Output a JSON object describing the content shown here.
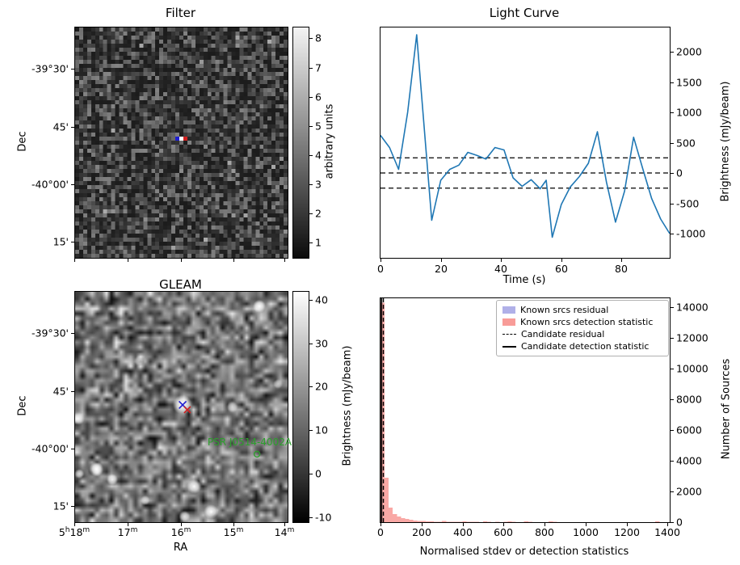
{
  "chart_data": [
    {
      "id": "filter",
      "type": "heatmap",
      "title": "Filter",
      "xlabel": "",
      "ylabel": "Dec",
      "ytick_labels": [
        "-39°30'",
        "45'",
        "-40°00'",
        "15'"
      ],
      "colorbar": {
        "label": "arbitrary units",
        "ticks": [
          8,
          7,
          6,
          5,
          4,
          3,
          2,
          1
        ],
        "min": 0.5,
        "max": 8.4,
        "top_color": "#f4f4f4",
        "bottom_color": "#0b0b0b"
      },
      "image": {
        "style": "pixel-noise",
        "grid": [
          53,
          57
        ]
      },
      "markers": [
        {
          "shape": "pixel",
          "color": "#1f1fd0",
          "cell": [
            25,
            27
          ]
        },
        {
          "shape": "pixel",
          "color": "#ffffff",
          "cell": [
            26,
            27
          ]
        },
        {
          "shape": "pixel",
          "color": "#d02020",
          "cell": [
            27,
            27
          ]
        }
      ]
    },
    {
      "id": "light-curve",
      "type": "line",
      "title": "Light Curve",
      "xlabel": "Time (s)",
      "ylabel": "Brightness (mJy/beam)",
      "line_color": "#1f77b4",
      "xlim": [
        0,
        96
      ],
      "ylim": [
        -1400,
        2400
      ],
      "xticks": [
        0,
        20,
        40,
        60,
        80
      ],
      "yticks": [
        2000,
        1500,
        1000,
        500,
        0,
        -500,
        -1000
      ],
      "x": [
        0,
        3,
        6,
        9,
        12,
        15,
        17,
        20,
        23,
        26,
        29,
        32,
        35,
        38,
        41,
        44,
        47,
        50,
        53,
        55,
        57,
        60,
        63,
        66,
        69,
        72,
        75,
        78,
        81,
        84,
        87,
        90,
        93,
        96
      ],
      "y": [
        620,
        420,
        60,
        1000,
        2280,
        450,
        -780,
        -120,
        60,
        130,
        340,
        290,
        230,
        420,
        380,
        -80,
        -220,
        -110,
        -260,
        -120,
        -1060,
        -520,
        -230,
        -60,
        160,
        680,
        -150,
        -810,
        -300,
        590,
        80,
        -420,
        -760,
        -1000
      ],
      "dashed_hlines": [
        250,
        0,
        -250
      ],
      "hline_color": "#000000"
    },
    {
      "id": "gleam",
      "type": "heatmap",
      "title": "GLEAM",
      "xlabel": "RA",
      "ylabel": "Dec",
      "xtick_labels": [
        "5^h^18^m",
        "17^m",
        "16^m",
        "15^m",
        "14^m"
      ],
      "ytick_labels": [
        "-39°30'",
        "45'",
        "-40°00'",
        "15'"
      ],
      "colorbar": {
        "label": "Brightness (mJy/beam)",
        "ticks": [
          40,
          30,
          20,
          10,
          0,
          -10
        ],
        "min": -11,
        "max": 42,
        "top_color": "#ffffff",
        "bottom_color": "#000000"
      },
      "image": {
        "style": "smoothed-noise",
        "grid": [
          44,
          48
        ],
        "blobs": [
          [
            0.505,
            0.49,
            12,
            1
          ],
          [
            0.867,
            0.063,
            8,
            1
          ],
          [
            0.015,
            0.55,
            8,
            0.85
          ],
          [
            0.1,
            0.77,
            9,
            1
          ],
          [
            0.175,
            0.815,
            7,
            0.9
          ],
          [
            0.02,
            0.79,
            6,
            0.8
          ],
          [
            0.56,
            0.845,
            9,
            1
          ],
          [
            0.64,
            0.955,
            9,
            1
          ],
          [
            0.515,
            0.975,
            7,
            0.85
          ],
          [
            0.33,
            0.905,
            6,
            0.75
          ],
          [
            0.74,
            0.5,
            7,
            0.65
          ],
          [
            0.3,
            0.3,
            6,
            0.5
          ],
          [
            0.955,
            0.4,
            6,
            0.6
          ]
        ]
      },
      "markers": [
        {
          "shape": "x",
          "color": "#1f1fd0",
          "pos": [
            0.506,
            0.491
          ],
          "size": 4.5
        },
        {
          "shape": "x",
          "color": "#d02020",
          "pos": [
            0.528,
            0.512
          ],
          "size": 4
        },
        {
          "shape": "circle",
          "color": "#2ca02c",
          "pos": [
            0.856,
            0.705
          ],
          "radius": 3.5
        }
      ],
      "annotations": [
        {
          "text": "PSR J0514-4002A",
          "color": "#2ca02c",
          "pos": [
            0.825,
            0.656
          ]
        }
      ]
    },
    {
      "id": "histogram",
      "type": "bar",
      "title": "",
      "xlabel": "Normalised stdev or detection statistics",
      "ylabel": "Number of Sources",
      "xlim": [
        0,
        1410
      ],
      "ylim": [
        0,
        14580
      ],
      "xticks": [
        0,
        200,
        400,
        600,
        800,
        1000,
        1200,
        1400
      ],
      "yticks": [
        0,
        2000,
        4000,
        6000,
        8000,
        10000,
        12000,
        14000
      ],
      "series": [
        {
          "name": "Known srcs residual",
          "color": "#b0b0e8",
          "bin_width": 8,
          "bins": [
            [
              0,
              14300
            ]
          ]
        },
        {
          "name": "Known srcs detection statistic",
          "color": "#f89c98",
          "bin_width": 20,
          "bins": [
            [
              0,
              14300
            ],
            [
              20,
              2900
            ],
            [
              40,
              950
            ],
            [
              60,
              520
            ],
            [
              80,
              360
            ],
            [
              100,
              270
            ],
            [
              120,
              205
            ],
            [
              140,
              150
            ],
            [
              160,
              115
            ],
            [
              180,
              90
            ],
            [
              200,
              72
            ],
            [
              220,
              58
            ],
            [
              240,
              46
            ],
            [
              260,
              38
            ],
            [
              280,
              30
            ],
            [
              300,
              85
            ],
            [
              320,
              32
            ],
            [
              340,
              26
            ],
            [
              360,
              20
            ],
            [
              380,
              16
            ],
            [
              400,
              60
            ],
            [
              420,
              24
            ],
            [
              440,
              14
            ],
            [
              460,
              30
            ],
            [
              480,
              12
            ],
            [
              500,
              45
            ],
            [
              520,
              18
            ],
            [
              560,
              24
            ],
            [
              600,
              14
            ],
            [
              620,
              55
            ],
            [
              640,
              20
            ],
            [
              660,
              12
            ],
            [
              700,
              65
            ],
            [
              720,
              24
            ],
            [
              760,
              12
            ],
            [
              820,
              45
            ],
            [
              840,
              18
            ],
            [
              880,
              10
            ],
            [
              940,
              12
            ],
            [
              1000,
              10
            ],
            [
              1080,
              10
            ],
            [
              1160,
              8
            ],
            [
              1240,
              8
            ],
            [
              1340,
              60
            ]
          ]
        }
      ],
      "vlines": [
        {
          "name": "Candidate residual",
          "x": 14,
          "style": "dashed",
          "color": "#000000"
        },
        {
          "name": "Candidate detection statistic",
          "x": 5,
          "style": "solid",
          "color": "#000000"
        }
      ],
      "legend": [
        {
          "label": "Known srcs residual",
          "swatch": "patch",
          "color": "#b0b0e8"
        },
        {
          "label": "Known srcs detection statistic",
          "swatch": "patch",
          "color": "#f89c98"
        },
        {
          "label": "Candidate residual",
          "swatch": "dashed-line",
          "color": "#000000"
        },
        {
          "label": "Candidate detection statistic",
          "swatch": "solid-line",
          "color": "#000000"
        }
      ]
    }
  ]
}
